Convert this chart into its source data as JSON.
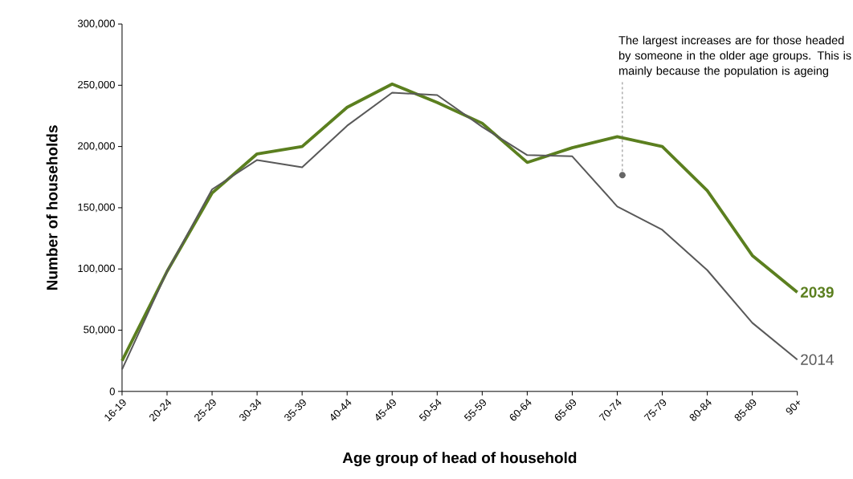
{
  "chart_data": {
    "type": "line",
    "xlabel": "Age group of head of household",
    "ylabel": "Number of households",
    "categories": [
      "16-19",
      "20-24",
      "25-29",
      "30-34",
      "35-39",
      "40-44",
      "45-49",
      "50-54",
      "55-59",
      "60-64",
      "65-69",
      "70-74",
      "75-79",
      "80-84",
      "85-89",
      "90+"
    ],
    "series": [
      {
        "name": "2039",
        "color": "#5b7f1f",
        "values": [
          25000,
          98000,
          162000,
          194000,
          200000,
          232000,
          251000,
          236000,
          219000,
          187000,
          199000,
          208000,
          200000,
          164000,
          111000,
          81000
        ]
      },
      {
        "name": "2014",
        "color": "#595959",
        "values": [
          18000,
          98000,
          165000,
          189000,
          183000,
          217000,
          244000,
          242000,
          216000,
          193000,
          192000,
          151000,
          132000,
          99000,
          56000,
          26000
        ]
      }
    ],
    "ylim": [
      0,
      300000
    ],
    "yticks": [
      {
        "value": 0,
        "label": "0"
      },
      {
        "value": 50000,
        "label": "50,000"
      },
      {
        "value": 100000,
        "label": "100,000"
      },
      {
        "value": 150000,
        "label": "150,000"
      },
      {
        "value": 200000,
        "label": "200,000"
      },
      {
        "value": 250000,
        "label": "250,000"
      },
      {
        "value": 300000,
        "label": "300,000"
      }
    ],
    "annotations": [
      "The largest increases are for those headed by someone in the older age groups. This is mainly because the population is ageing"
    ]
  }
}
